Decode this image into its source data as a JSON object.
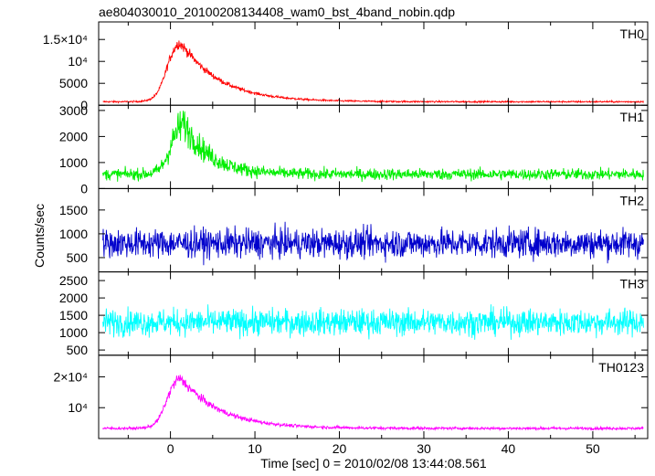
{
  "chart_data": {
    "type": "line",
    "title": "ae804030010_20100208134408_wam0_bst_4band_nobin.qdp",
    "xlabel": "Time [sec] 0 = 2010/02/08 13:44:08.561",
    "ylabel": "Counts/sec",
    "xlim": [
      -8.5,
      56.5
    ],
    "x_ticks": [
      0,
      10,
      20,
      30,
      40,
      50
    ],
    "x_tick_labels": [
      "0",
      "10",
      "20",
      "30",
      "40",
      "50"
    ],
    "data_x_range": [
      -8,
      56
    ],
    "grid": false,
    "panels": [
      {
        "name": "TH0",
        "color": "#ff0000",
        "ylim": [
          0,
          19000
        ],
        "ticks": [
          0,
          5000,
          10000,
          15000
        ],
        "tick_labels": [
          "0",
          "5000",
          "10⁴",
          "1.5×10⁴"
        ],
        "baseline": 800,
        "peak": 14500,
        "peak_time": 1,
        "decay_time": 4.5,
        "noise": 1600,
        "noise_floor": 250
      },
      {
        "name": "TH1",
        "color": "#00ee00",
        "ylim": [
          0,
          3200
        ],
        "ticks": [
          0,
          1000,
          2000,
          3000
        ],
        "tick_labels": [
          "0",
          "1000",
          "2000",
          "3000"
        ],
        "baseline": 550,
        "peak": 2100,
        "peak_time": 1.5,
        "decay_time": 3,
        "noise": 700,
        "noise_floor": 300
      },
      {
        "name": "TH2",
        "color": "#0000cc",
        "ylim": [
          200,
          1950
        ],
        "ticks": [
          500,
          1000,
          1500
        ],
        "tick_labels": [
          "500",
          "1000",
          "1500"
        ],
        "baseline": 800,
        "peak": 0,
        "peak_time": 0,
        "decay_time": 1,
        "noise": 420,
        "noise_floor": 0
      },
      {
        "name": "TH3",
        "color": "#00ffff",
        "ylim": [
          350,
          2750
        ],
        "ticks": [
          500,
          1000,
          1500,
          2000,
          2500
        ],
        "tick_labels": [
          "500",
          "1000",
          "1500",
          "2000",
          "2500"
        ],
        "baseline": 1300,
        "peak": 0,
        "peak_time": 0,
        "decay_time": 1,
        "noise": 520,
        "noise_floor": 0
      },
      {
        "name": "TH0123",
        "color": "#ff00ff",
        "ylim": [
          0,
          27000
        ],
        "ticks": [
          10000,
          20000
        ],
        "tick_labels": [
          "10⁴",
          "2×10⁴"
        ],
        "baseline": 3300,
        "peak": 17500,
        "peak_time": 1,
        "decay_time": 4.5,
        "noise": 2200,
        "noise_floor": 600
      }
    ]
  }
}
